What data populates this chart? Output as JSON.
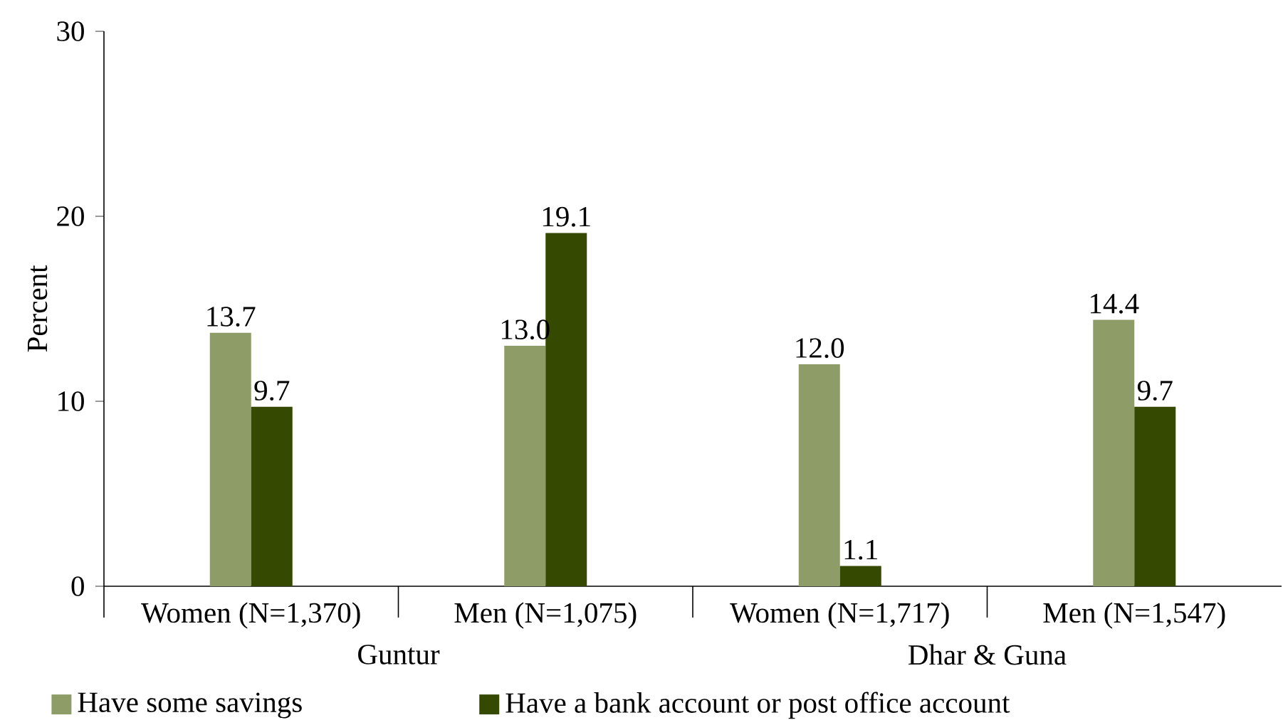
{
  "chart_data": {
    "type": "bar",
    "ylabel": "Percent",
    "categories": [
      "Women (N=1,370)",
      "Men (N=1,075)",
      "Women (N=1,717)",
      "Men (N=1,547)"
    ],
    "series": [
      {
        "name": "Have some savings",
        "color": "#8e9c68",
        "values": [
          13.7,
          13.0,
          12.0,
          14.4
        ],
        "value_labels": [
          "13.7",
          "13.0",
          "12.0",
          "14.4"
        ]
      },
      {
        "name": "Have a bank account or post office account",
        "color": "#354a00",
        "values": [
          9.7,
          19.1,
          1.1,
          9.7
        ],
        "value_labels": [
          "9.7",
          "19.1",
          "1.1",
          "9.7"
        ]
      }
    ],
    "ylim": [
      0,
      30
    ],
    "yticks": [
      0,
      10,
      20,
      30
    ],
    "grid": false,
    "legend": "bottom",
    "annotations": [
      "Guntur",
      "Dhar & Guna"
    ]
  }
}
